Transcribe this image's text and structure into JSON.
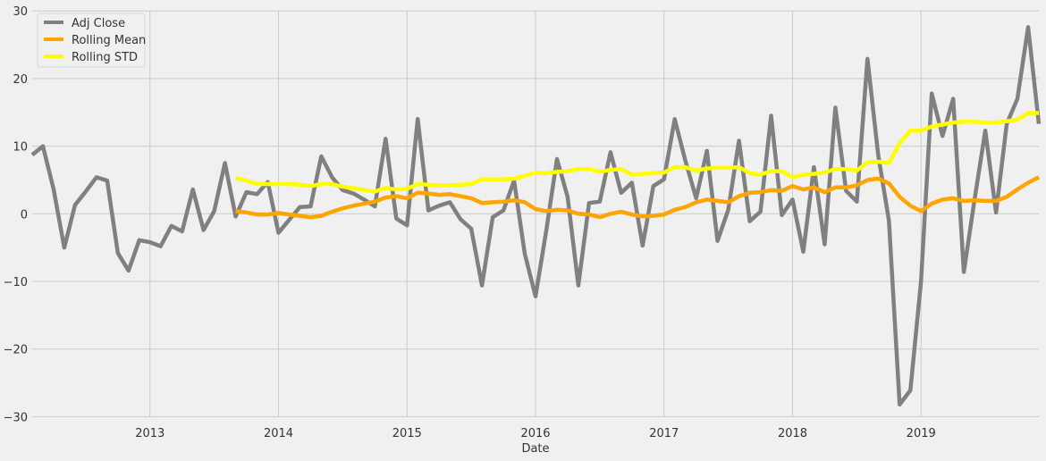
{
  "chart_data": {
    "type": "line",
    "title": "",
    "xlabel": "Date",
    "ylabel": "",
    "ylim": [
      -30,
      30
    ],
    "xlim": [
      "2012-01",
      "2019-11"
    ],
    "grid": true,
    "legend_position": "upper left",
    "y_ticks": [
      "30",
      "20",
      "10",
      "0",
      "−10",
      "−20",
      "−30"
    ],
    "y_tick_values": [
      30,
      20,
      10,
      0,
      -10,
      -20,
      -30
    ],
    "x_ticks": [
      "2013",
      "2014",
      "2015",
      "2016",
      "2017",
      "2018",
      "2019"
    ],
    "x": [
      "2012-01",
      "2012-02",
      "2012-03",
      "2012-04",
      "2012-05",
      "2012-06",
      "2012-07",
      "2012-08",
      "2012-09",
      "2012-10",
      "2012-11",
      "2012-12",
      "2013-01",
      "2013-02",
      "2013-03",
      "2013-04",
      "2013-05",
      "2013-06",
      "2013-07",
      "2013-08",
      "2013-09",
      "2013-10",
      "2013-11",
      "2013-12",
      "2014-01",
      "2014-02",
      "2014-03",
      "2014-04",
      "2014-05",
      "2014-06",
      "2014-07",
      "2014-08",
      "2014-09",
      "2014-10",
      "2014-11",
      "2014-12",
      "2015-01",
      "2015-02",
      "2015-03",
      "2015-04",
      "2015-05",
      "2015-06",
      "2015-07",
      "2015-08",
      "2015-09",
      "2015-10",
      "2015-11",
      "2015-12",
      "2016-01",
      "2016-02",
      "2016-03",
      "2016-04",
      "2016-05",
      "2016-06",
      "2016-07",
      "2016-08",
      "2016-09",
      "2016-10",
      "2016-11",
      "2016-12",
      "2017-01",
      "2017-02",
      "2017-03",
      "2017-04",
      "2017-05",
      "2017-06",
      "2017-07",
      "2017-08",
      "2017-09",
      "2017-10",
      "2017-11",
      "2017-12",
      "2018-01",
      "2018-02",
      "2018-03",
      "2018-04",
      "2018-05",
      "2018-06",
      "2018-07",
      "2018-08",
      "2018-09",
      "2018-10",
      "2018-11",
      "2018-12",
      "2019-01",
      "2019-02",
      "2019-03",
      "2019-04",
      "2019-05",
      "2019-06",
      "2019-07",
      "2019-08",
      "2019-09",
      "2019-10",
      "2019-11"
    ],
    "series": [
      {
        "name": "Adj Close",
        "color": "#808080",
        "values": [
          8.7,
          10.0,
          3.6,
          -5.0,
          1.3,
          3.3,
          5.4,
          4.9,
          -5.8,
          -8.4,
          -3.9,
          -4.2,
          -4.8,
          -1.8,
          -2.6,
          3.6,
          -2.4,
          0.4,
          7.5,
          -0.4,
          3.2,
          2.9,
          4.7,
          -2.8,
          -0.9,
          1.0,
          1.1,
          8.5,
          5.4,
          3.5,
          3.0,
          2.1,
          1.1,
          11.1,
          -0.7,
          -1.7,
          14.0,
          0.5,
          1.2,
          1.7,
          -0.8,
          -2.2,
          -10.6,
          -0.5,
          0.5,
          4.9,
          -5.9,
          -12.2,
          -2.5,
          8.1,
          2.5,
          -10.6,
          1.6,
          1.8,
          9.1,
          3.1,
          4.6,
          -4.7,
          4.1,
          5.1,
          14.0,
          7.8,
          2.3,
          9.3,
          -4.0,
          0.6,
          10.8,
          -1.1,
          0.3,
          14.5,
          -0.2,
          2.1,
          -5.6,
          6.9,
          -4.5,
          15.7,
          3.4,
          1.8,
          22.9,
          8.7,
          -1.0,
          -28.2,
          -26.1,
          -10.0,
          17.8,
          11.5,
          17.0,
          -8.6,
          2.1,
          12.3,
          0.2,
          13.3,
          17.0,
          27.6,
          13.3
        ]
      },
      {
        "name": "Rolling Mean",
        "color": "#FFA500",
        "values": [
          null,
          null,
          null,
          null,
          null,
          null,
          null,
          null,
          null,
          null,
          null,
          null,
          null,
          null,
          null,
          null,
          null,
          null,
          null,
          0.4,
          0.2,
          -0.1,
          -0.1,
          0.1,
          -0.1,
          -0.3,
          -0.5,
          -0.3,
          0.3,
          0.8,
          1.2,
          1.5,
          1.8,
          2.4,
          2.6,
          2.3,
          3.1,
          3.0,
          2.8,
          2.9,
          2.6,
          2.3,
          1.6,
          1.7,
          1.8,
          2.0,
          1.7,
          0.7,
          0.4,
          0.6,
          0.5,
          0.0,
          -0.1,
          -0.5,
          0.0,
          0.3,
          -0.1,
          -0.4,
          -0.3,
          -0.1,
          0.6,
          1.0,
          1.7,
          2.1,
          1.9,
          1.7,
          2.6,
          3.1,
          3.2,
          3.5,
          3.4,
          4.1,
          3.6,
          3.9,
          3.2,
          3.9,
          3.9,
          4.2,
          5.0,
          5.2,
          4.5,
          2.5,
          1.2,
          0.4,
          1.5,
          2.1,
          2.3,
          1.9,
          2.0,
          1.9,
          1.9,
          2.5,
          3.6,
          4.6,
          5.4
        ]
      },
      {
        "name": "Rolling STD",
        "color": "#FFFF00",
        "values": [
          null,
          null,
          null,
          null,
          null,
          null,
          null,
          null,
          null,
          null,
          null,
          null,
          null,
          null,
          null,
          null,
          null,
          null,
          null,
          5.3,
          4.9,
          4.4,
          4.4,
          4.4,
          4.4,
          4.3,
          4.1,
          4.4,
          4.4,
          4.0,
          3.8,
          3.5,
          3.3,
          3.8,
          3.6,
          3.7,
          4.4,
          4.3,
          4.2,
          4.2,
          4.3,
          4.4,
          5.1,
          5.1,
          5.1,
          5.2,
          5.6,
          6.1,
          6.0,
          6.2,
          6.3,
          6.6,
          6.6,
          6.2,
          6.5,
          6.6,
          5.8,
          5.9,
          6.0,
          6.1,
          6.9,
          6.9,
          6.4,
          6.7,
          6.8,
          6.8,
          6.9,
          6.0,
          5.8,
          6.3,
          6.3,
          5.4,
          5.8,
          5.9,
          6.1,
          6.6,
          6.6,
          6.4,
          7.6,
          7.7,
          7.5,
          10.4,
          12.3,
          12.3,
          12.9,
          13.2,
          13.5,
          13.6,
          13.6,
          13.5,
          13.5,
          13.7,
          13.9,
          14.9,
          14.9
        ]
      }
    ]
  },
  "legend": {
    "items": [
      {
        "label": "Adj Close",
        "color": "#808080"
      },
      {
        "label": "Rolling Mean",
        "color": "#FFA500"
      },
      {
        "label": "Rolling STD",
        "color": "#FFFF00"
      }
    ]
  },
  "colors": {
    "background": "#F0F0F0",
    "grid": "#CBCBCB",
    "text": "#333333"
  }
}
